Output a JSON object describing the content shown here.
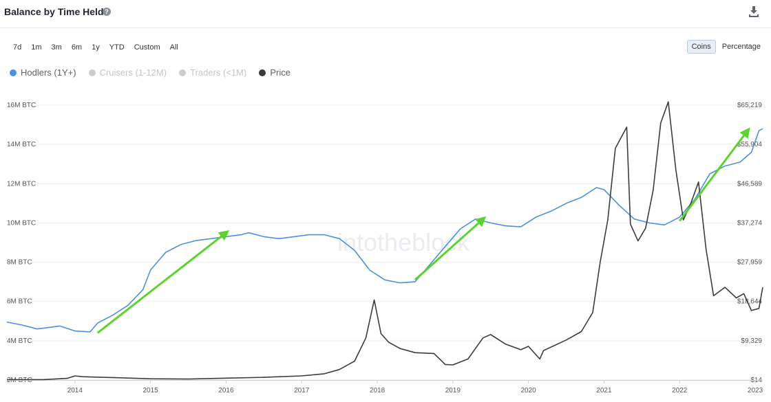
{
  "header": {
    "title": "Balance by Time Held",
    "help_icon": "question-circle-icon",
    "download_icon": "download-icon"
  },
  "ranges": [
    "7d",
    "1m",
    "3m",
    "6m",
    "1y",
    "YTD",
    "Custom",
    "All"
  ],
  "toggle": {
    "coins_label": "Coins",
    "percentage_label": "Percentage",
    "active": "Coins"
  },
  "legend": [
    {
      "label": "Hodlers (1Y+)",
      "color": "#4a90e2",
      "visible": true
    },
    {
      "label": "Cruisers (1-12M)",
      "color": "#cccccc",
      "visible": false
    },
    {
      "label": "Traders (<1M)",
      "color": "#cccccc",
      "visible": false
    },
    {
      "label": "Price",
      "color": "#3a3a3e",
      "visible": true
    }
  ],
  "watermark": "intotheblock",
  "chart_data": {
    "type": "line",
    "title": "Balance by Time Held",
    "xlabel": "",
    "ylabel": "BTC",
    "x_ticks": [
      "2014",
      "2015",
      "2016",
      "2017",
      "2018",
      "2019",
      "2020",
      "2021",
      "2022",
      "2023"
    ],
    "x_range": [
      2013.1,
      2023.1
    ],
    "y_left_ticks": [
      "2M BTC",
      "4M BTC",
      "6M BTC",
      "8M BTC",
      "10M BTC",
      "12M BTC",
      "14M BTC",
      "16M BTC"
    ],
    "y_left_range": [
      2,
      16
    ],
    "y_right_ticks": [
      "$14",
      "$9,329",
      "$18,644",
      "$27,959",
      "$37,274",
      "$46,589",
      "$55,904",
      "$65,219"
    ],
    "y_right_range": [
      14,
      65219
    ],
    "series": [
      {
        "name": "Hodlers (1Y+)",
        "axis": "left",
        "color": "#4a90e2",
        "x": [
          2013.1,
          2013.3,
          2013.5,
          2013.8,
          2014.0,
          2014.2,
          2014.3,
          2014.5,
          2014.7,
          2014.9,
          2015.0,
          2015.2,
          2015.4,
          2015.6,
          2015.8,
          2016.0,
          2016.2,
          2016.3,
          2016.5,
          2016.7,
          2016.9,
          2017.1,
          2017.3,
          2017.5,
          2017.7,
          2017.9,
          2018.1,
          2018.3,
          2018.5,
          2018.7,
          2018.9,
          2019.1,
          2019.3,
          2019.5,
          2019.7,
          2019.9,
          2020.1,
          2020.3,
          2020.5,
          2020.7,
          2020.9,
          2021.0,
          2021.2,
          2021.4,
          2021.6,
          2021.8,
          2022.0,
          2022.2,
          2022.4,
          2022.6,
          2022.8,
          2022.95,
          2023.05,
          2023.1
        ],
        "y": [
          4.95,
          4.8,
          4.6,
          4.75,
          4.5,
          4.45,
          4.9,
          5.3,
          5.8,
          6.6,
          7.6,
          8.5,
          8.9,
          9.1,
          9.2,
          9.3,
          9.4,
          9.5,
          9.3,
          9.2,
          9.3,
          9.4,
          9.4,
          9.2,
          8.6,
          7.6,
          7.1,
          6.95,
          7.0,
          7.9,
          8.8,
          9.7,
          10.2,
          10.0,
          9.85,
          9.8,
          10.3,
          10.6,
          11.0,
          11.3,
          11.8,
          11.7,
          10.9,
          10.2,
          10.0,
          9.9,
          10.3,
          11.2,
          12.5,
          12.9,
          13.1,
          13.6,
          14.7,
          14.8
        ]
      },
      {
        "name": "Price",
        "axis": "right",
        "color": "#3a3a3e",
        "x": [
          2013.1,
          2013.6,
          2013.9,
          2014.0,
          2014.1,
          2014.5,
          2015.0,
          2015.5,
          2016.0,
          2016.5,
          2017.0,
          2017.3,
          2017.5,
          2017.7,
          2017.85,
          2017.96,
          2018.05,
          2018.15,
          2018.3,
          2018.5,
          2018.75,
          2018.9,
          2019.0,
          2019.2,
          2019.4,
          2019.5,
          2019.7,
          2019.9,
          2020.0,
          2020.15,
          2020.2,
          2020.5,
          2020.7,
          2020.85,
          2020.95,
          2021.05,
          2021.15,
          2021.3,
          2021.35,
          2021.45,
          2021.55,
          2021.65,
          2021.75,
          2021.85,
          2021.95,
          2022.05,
          2022.15,
          2022.25,
          2022.35,
          2022.45,
          2022.6,
          2022.75,
          2022.85,
          2022.95,
          2023.05,
          2023.1
        ],
        "y": [
          100,
          120,
          400,
          1000,
          800,
          600,
          300,
          250,
          450,
          650,
          1000,
          1500,
          2500,
          4500,
          10000,
          19000,
          11000,
          9000,
          7500,
          6500,
          6300,
          3700,
          3600,
          5000,
          10000,
          10800,
          8500,
          7200,
          8000,
          5000,
          7000,
          9500,
          11500,
          16000,
          28000,
          38000,
          55000,
          60000,
          37000,
          33000,
          36000,
          45000,
          61000,
          66000,
          50000,
          38000,
          42000,
          47000,
          31000,
          20000,
          22000,
          19500,
          20500,
          16500,
          17000,
          22000
        ]
      }
    ],
    "annotations": [
      {
        "type": "arrow",
        "color": "#5ad32a",
        "from": [
          2014.3,
          4.4
        ],
        "to": [
          2016.0,
          9.5
        ]
      },
      {
        "type": "arrow",
        "color": "#5ad32a",
        "from": [
          2018.5,
          7.1
        ],
        "to": [
          2019.4,
          10.2
        ]
      },
      {
        "type": "arrow",
        "color": "#5ad32a",
        "from": [
          2022.0,
          10.1
        ],
        "to": [
          2022.9,
          14.7
        ]
      }
    ]
  }
}
